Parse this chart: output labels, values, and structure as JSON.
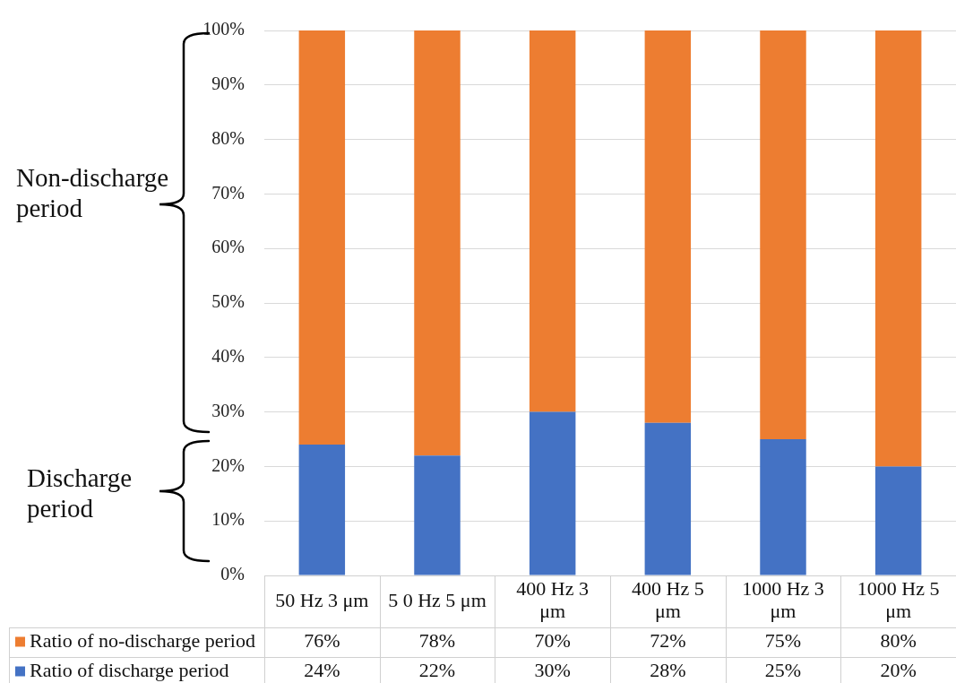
{
  "chart_data": {
    "type": "bar",
    "stacked": true,
    "categories": [
      "50 Hz 3 μm",
      "5 0 Hz 5 μm",
      "400 Hz 3 μm",
      "400 Hz 5 μm",
      "1000 Hz 3 μm",
      "1000 Hz 5 μm"
    ],
    "series": [
      {
        "name": "Ratio of discharge period",
        "color": "#4472c4",
        "values": [
          24,
          22,
          30,
          28,
          25,
          20
        ],
        "value_labels": [
          "24%",
          "22%",
          "30%",
          "28%",
          "25%",
          "20%"
        ]
      },
      {
        "name": "Ratio of no-discharge period",
        "color": "#ed7d31",
        "values": [
          76,
          78,
          70,
          72,
          75,
          80
        ],
        "value_labels": [
          "76%",
          "78%",
          "70%",
          "72%",
          "75%",
          "80%"
        ]
      }
    ],
    "ylim": [
      0,
      100
    ],
    "yticks": [
      {
        "value": 0,
        "label": "0%"
      },
      {
        "value": 10,
        "label": "10%"
      },
      {
        "value": 20,
        "label": "20%"
      },
      {
        "value": 30,
        "label": "30%"
      },
      {
        "value": 40,
        "label": "40%"
      },
      {
        "value": 50,
        "label": "50%"
      },
      {
        "value": 60,
        "label": "60%"
      },
      {
        "value": 70,
        "label": "70%"
      },
      {
        "value": 80,
        "label": "80%"
      },
      {
        "value": 90,
        "label": "90%"
      },
      {
        "value": 100,
        "label": "100%"
      }
    ],
    "grid": "y",
    "legend": "bottom",
    "annotations": [
      "Non-discharge period",
      "Discharge period"
    ]
  }
}
